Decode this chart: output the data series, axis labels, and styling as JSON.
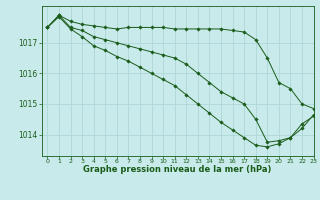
{
  "title": "Graphe pression niveau de la mer (hPa)",
  "background_color": "#c8eaea",
  "grid_color": "#b0d8d8",
  "line_color": "#1a5c1a",
  "xlim": [
    -0.5,
    23
  ],
  "ylim": [
    1013.3,
    1018.2
  ],
  "yticks": [
    1014,
    1015,
    1016,
    1017
  ],
  "xticks": [
    0,
    1,
    2,
    3,
    4,
    5,
    6,
    7,
    8,
    9,
    10,
    11,
    12,
    13,
    14,
    15,
    16,
    17,
    18,
    19,
    20,
    21,
    22,
    23
  ],
  "series": [
    [
      1017.5,
      1017.9,
      1017.7,
      1017.6,
      1017.55,
      1017.5,
      1017.45,
      1017.5,
      1017.5,
      1017.5,
      1017.5,
      1017.45,
      1017.45,
      1017.45,
      1017.45,
      1017.45,
      1017.4,
      1017.35,
      1017.1,
      1016.5,
      1015.7,
      1015.5,
      1015.0,
      1014.85
    ],
    [
      1017.5,
      1017.9,
      1017.5,
      1017.4,
      1017.2,
      1017.1,
      1017.0,
      1016.9,
      1016.8,
      1016.7,
      1016.6,
      1016.5,
      1016.3,
      1016.0,
      1015.7,
      1015.4,
      1015.2,
      1015.0,
      1014.5,
      1013.75,
      1013.8,
      1013.9,
      1014.2,
      1014.65
    ],
    [
      1017.5,
      1017.85,
      1017.45,
      1017.2,
      1016.9,
      1016.75,
      1016.55,
      1016.4,
      1016.2,
      1016.0,
      1015.8,
      1015.6,
      1015.3,
      1015.0,
      1014.7,
      1014.4,
      1014.15,
      1013.9,
      1013.65,
      1013.6,
      1013.7,
      1013.9,
      1014.35,
      1014.6
    ]
  ]
}
